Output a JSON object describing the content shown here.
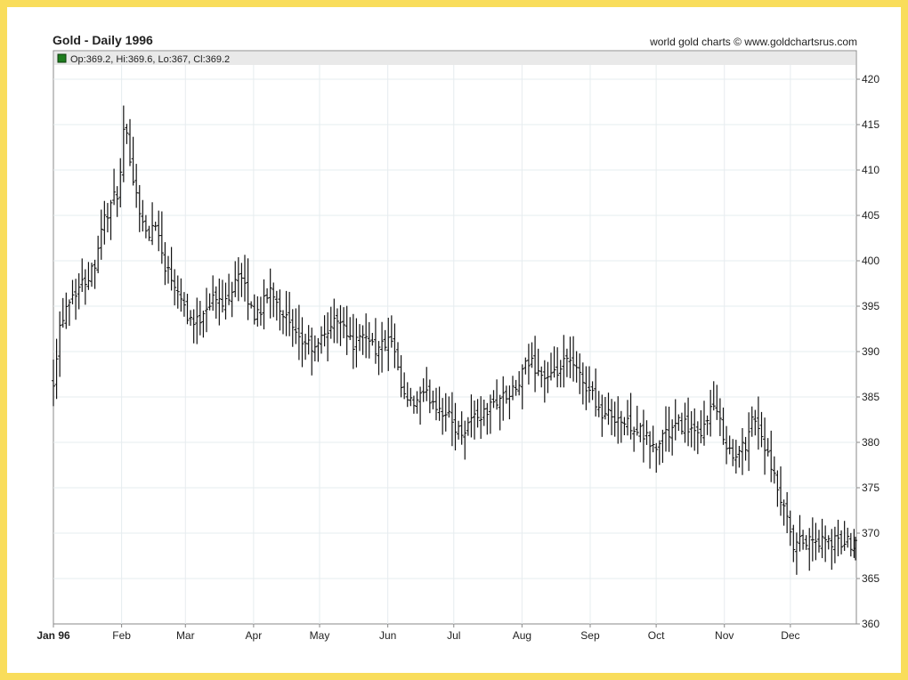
{
  "header": {
    "title": "Gold - Daily 1996",
    "credit": "world gold charts © www.goldchartsrus.com"
  },
  "legend": {
    "text": "Op:369.2, Hi:369.6, Lo:367, Cl:369.2",
    "swatch_color": "#1e7d1e"
  },
  "colors": {
    "frame": "#f9dd5b",
    "grid": "#e6ecef",
    "bars": "#111111",
    "axis": "#888888",
    "legend_bg": "#e9e9e9"
  },
  "chart_data": {
    "type": "ohlc",
    "title": "Gold - Daily 1996",
    "ylim": [
      360,
      422
    ],
    "yticks": [
      360,
      365,
      370,
      375,
      380,
      385,
      390,
      395,
      400,
      405,
      410,
      415,
      420
    ],
    "grid": true,
    "x_unit": "day of year 1996",
    "xlim": [
      1,
      366
    ],
    "month_ticks": [
      {
        "label": "Jan 96",
        "day": 1
      },
      {
        "label": "Feb",
        "day": 32
      },
      {
        "label": "Mar",
        "day": 61
      },
      {
        "label": "Apr",
        "day": 92
      },
      {
        "label": "May",
        "day": 122
      },
      {
        "label": "Jun",
        "day": 153
      },
      {
        "label": "Jul",
        "day": 183
      },
      {
        "label": "Aug",
        "day": 214
      },
      {
        "label": "Sep",
        "day": 245
      },
      {
        "label": "Oct",
        "day": 275
      },
      {
        "label": "Nov",
        "day": 306
      },
      {
        "label": "Dec",
        "day": 336
      }
    ],
    "close_anchors": [
      [
        1,
        387
      ],
      [
        4,
        393
      ],
      [
        8,
        396
      ],
      [
        12,
        397
      ],
      [
        16,
        398
      ],
      [
        20,
        400
      ],
      [
        23,
        404
      ],
      [
        27,
        406
      ],
      [
        31,
        408
      ],
      [
        33,
        414
      ],
      [
        35,
        413
      ],
      [
        38,
        408
      ],
      [
        41,
        405
      ],
      [
        44,
        402
      ],
      [
        47,
        405
      ],
      [
        51,
        400
      ],
      [
        55,
        398
      ],
      [
        58,
        397
      ],
      [
        62,
        394
      ],
      [
        66,
        393
      ],
      [
        70,
        395
      ],
      [
        74,
        396
      ],
      [
        78,
        395
      ],
      [
        82,
        397
      ],
      [
        85,
        399
      ],
      [
        89,
        396
      ],
      [
        92,
        394
      ],
      [
        96,
        395
      ],
      [
        100,
        397
      ],
      [
        104,
        395
      ],
      [
        108,
        393
      ],
      [
        112,
        391
      ],
      [
        116,
        391
      ],
      [
        120,
        390
      ],
      [
        124,
        392
      ],
      [
        128,
        393
      ],
      [
        132,
        394
      ],
      [
        136,
        391
      ],
      [
        140,
        391
      ],
      [
        144,
        392
      ],
      [
        148,
        390
      ],
      [
        152,
        391
      ],
      [
        155,
        391
      ],
      [
        158,
        387
      ],
      [
        160,
        385
      ],
      [
        164,
        384
      ],
      [
        168,
        385
      ],
      [
        172,
        385
      ],
      [
        176,
        384
      ],
      [
        180,
        383
      ],
      [
        183,
        382
      ],
      [
        186,
        381
      ],
      [
        189,
        382
      ],
      [
        192,
        383
      ],
      [
        196,
        383
      ],
      [
        200,
        384
      ],
      [
        204,
        385
      ],
      [
        208,
        385
      ],
      [
        212,
        386
      ],
      [
        215,
        388
      ],
      [
        218,
        389
      ],
      [
        221,
        388
      ],
      [
        225,
        387
      ],
      [
        228,
        387
      ],
      [
        231,
        388
      ],
      [
        235,
        389
      ],
      [
        238,
        388
      ],
      [
        241,
        387
      ],
      [
        244,
        386
      ],
      [
        247,
        385
      ],
      [
        250,
        383
      ],
      [
        253,
        383
      ],
      [
        257,
        383
      ],
      [
        260,
        382
      ],
      [
        264,
        382
      ],
      [
        268,
        381
      ],
      [
        272,
        380
      ],
      [
        275,
        379
      ],
      [
        278,
        381
      ],
      [
        281,
        381
      ],
      [
        285,
        382
      ],
      [
        289,
        382
      ],
      [
        292,
        381
      ],
      [
        295,
        380
      ],
      [
        298,
        383
      ],
      [
        301,
        384
      ],
      [
        304,
        382
      ],
      [
        307,
        380
      ],
      [
        310,
        378
      ],
      [
        313,
        379
      ],
      [
        316,
        380
      ],
      [
        318,
        383
      ],
      [
        321,
        382
      ],
      [
        324,
        380
      ],
      [
        327,
        377
      ],
      [
        330,
        375
      ],
      [
        332,
        373
      ],
      [
        335,
        371
      ],
      [
        337,
        368
      ],
      [
        340,
        369
      ],
      [
        343,
        369
      ],
      [
        346,
        369
      ],
      [
        350,
        369
      ],
      [
        354,
        369
      ],
      [
        358,
        369
      ],
      [
        362,
        369
      ],
      [
        366,
        369
      ]
    ],
    "last_bar": {
      "open": 369.2,
      "high": 369.6,
      "low": 367,
      "close": 369.2
    }
  }
}
